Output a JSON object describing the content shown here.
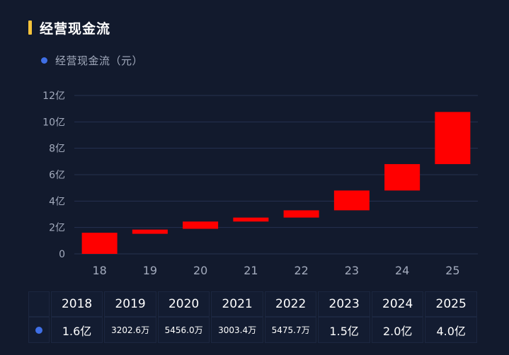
{
  "header": {
    "title": "经营现金流"
  },
  "colors": {
    "accent": "#f5c33b",
    "series_color": "#ff0000",
    "legend_dot": "#3f6fe6"
  },
  "legend": {
    "label": "经营现金流（元）"
  },
  "chart_data": {
    "type": "bar",
    "subtype": "floating (waterfall-style range bars)",
    "title": "经营现金流",
    "ylabel": "",
    "xlabel": "",
    "ylim": [
      0,
      12
    ],
    "y_unit": "亿",
    "y_ticks": [
      "0",
      "2亿",
      "4亿",
      "6亿",
      "8亿",
      "10亿",
      "12亿"
    ],
    "grid": true,
    "categories": [
      "18",
      "19",
      "20",
      "21",
      "22",
      "23",
      "24",
      "25"
    ],
    "series": [
      {
        "name": "经营现金流（元）",
        "ranges": [
          [
            0,
            1.6
          ],
          [
            1.52,
            1.84
          ],
          [
            1.9,
            2.45
          ],
          [
            2.45,
            2.75
          ],
          [
            2.75,
            3.3
          ],
          [
            3.3,
            4.8
          ],
          [
            4.8,
            6.8
          ],
          [
            6.8,
            10.75
          ]
        ]
      }
    ]
  },
  "table": {
    "years": [
      "2018",
      "2019",
      "2020",
      "2021",
      "2022",
      "2023",
      "2024",
      "2025"
    ],
    "values": [
      "1.6亿",
      "3202.6万",
      "5456.0万",
      "3003.4万",
      "5475.7万",
      "1.5亿",
      "2.0亿",
      "4.0亿"
    ]
  }
}
